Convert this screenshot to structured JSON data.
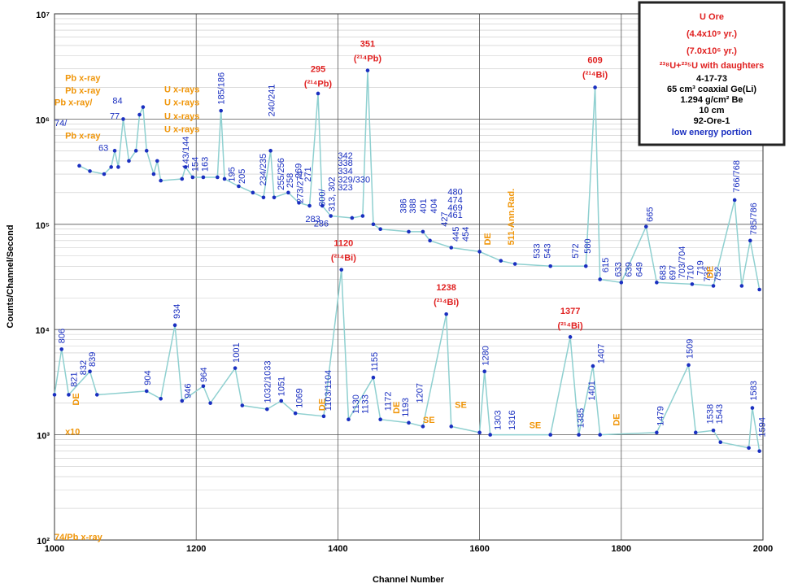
{
  "chart_data": {
    "type": "line",
    "ylabel": "Counts/Channel/Second",
    "xlabel": "Channel Number",
    "log_y": true,
    "grid": true,
    "xlim": [
      1000,
      2000
    ],
    "xticks": [
      1000,
      1200,
      1400,
      1600,
      1800,
      2000
    ],
    "ylim": [
      100,
      10000000
    ],
    "yticks": [
      {
        "value": 100,
        "label": "10²"
      },
      {
        "value": 1000,
        "label": "10³"
      },
      {
        "value": 10000,
        "label": "10⁴"
      },
      {
        "value": 100000,
        "label": "10⁵"
      },
      {
        "value": 1000000,
        "label": "10⁶"
      },
      {
        "value": 10000000,
        "label": "10⁷"
      }
    ],
    "line_color": "#8fd0d0",
    "marker_color": "#1a2fc0",
    "series": [
      {
        "x": [
          1035,
          1050,
          1070,
          1080,
          1085,
          1090,
          1097,
          1105,
          1115,
          1120,
          1125,
          1130,
          1140,
          1145,
          1150,
          1180,
          1185,
          1195,
          1210,
          1230,
          1235,
          1240,
          1260,
          1280,
          1295,
          1305,
          1310,
          1330,
          1345,
          1360,
          1372,
          1378,
          1390,
          1420,
          1435,
          1442,
          1450,
          1460,
          1500,
          1520,
          1530,
          1560,
          1600,
          1630,
          1650,
          1700,
          1750,
          1763,
          1770,
          1800,
          1835,
          1850,
          1900,
          1930,
          1960,
          1970,
          1982,
          1995
        ],
        "values": [
          360000,
          320000,
          300000,
          350000,
          500000,
          350000,
          1000000,
          400000,
          500000,
          1100000,
          1300000,
          500000,
          300000,
          400000,
          260000,
          270000,
          350000,
          280000,
          280000,
          280000,
          1200000,
          270000,
          230000,
          200000,
          180000,
          500000,
          180000,
          200000,
          160000,
          150000,
          1750000,
          150000,
          120000,
          115000,
          120000,
          2900000,
          100000,
          90000,
          85000,
          85000,
          70000,
          60000,
          55000,
          45000,
          42000,
          40000,
          40000,
          2000000,
          30000,
          28000,
          95000,
          28000,
          27000,
          26000,
          170000,
          26000,
          70000,
          24000
        ]
      },
      {
        "x": [
          1000,
          1010,
          1020,
          1050,
          1060,
          1130,
          1150,
          1170,
          1180,
          1210,
          1220,
          1255,
          1265,
          1300,
          1320,
          1340,
          1380,
          1405,
          1415,
          1450,
          1460,
          1500,
          1520,
          1553,
          1560,
          1600,
          1607,
          1615,
          1700,
          1728,
          1740,
          1760,
          1770,
          1850,
          1895,
          1905,
          1930,
          1940,
          1980,
          1985,
          1995
        ],
        "values": [
          2400,
          6500,
          2400,
          4000,
          2400,
          2600,
          2200,
          11000,
          2100,
          2900,
          2000,
          4300,
          1900,
          1750,
          2100,
          1600,
          1500,
          37000,
          1400,
          3500,
          1400,
          1300,
          1200,
          14000,
          1200,
          1050,
          4000,
          1000,
          1000,
          8500,
          1000,
          4500,
          1000,
          1050,
          4600,
          1050,
          1100,
          850,
          750,
          1800,
          700
        ]
      }
    ],
    "red_labels": {
      "color": "#e02020",
      "labels": [
        {
          "text": "295",
          "sub": "(²¹⁴Pb)",
          "x": 1372,
          "y": 1900000
        },
        {
          "text": "351",
          "sub": "(²¹⁴Pb)",
          "x": 1442,
          "y": 3300000
        },
        {
          "text": "609",
          "sub": "(²¹⁴Bi)",
          "x": 1763,
          "y": 2300000
        },
        {
          "text": "1120",
          "sub": "(²¹⁴Bi)",
          "x": 1408,
          "y": 42000
        },
        {
          "text": "1238",
          "sub": "(²¹⁴Bi)",
          "x": 1553,
          "y": 16000
        },
        {
          "text": "1377",
          "sub": "(²¹⁴Bi)",
          "x": 1728,
          "y": 9500
        }
      ]
    },
    "peak_labels": {
      "color": "#1a2fc0",
      "labels": [
        {
          "text": "143/144",
          "x": 1185,
          "y": 320000
        },
        {
          "text": "154",
          "x": 1198,
          "y": 300000
        },
        {
          "text": "163",
          "x": 1212,
          "y": 300000
        },
        {
          "text": "185/186",
          "x": 1235,
          "y": 1300000
        },
        {
          "text": "195",
          "x": 1250,
          "y": 240000
        },
        {
          "text": "205",
          "x": 1264,
          "y": 230000
        },
        {
          "text": "234/235",
          "x": 1294,
          "y": 220000
        },
        {
          "text": "240/241",
          "x": 1306,
          "y": 1000000
        },
        {
          "text": "255/256",
          "x": 1319,
          "y": 200000
        },
        {
          "text": "258",
          "x": 1332,
          "y": 210000
        },
        {
          "text": "269",
          "x": 1344,
          "y": 260000
        },
        {
          "text": "271",
          "x": 1357,
          "y": 240000
        },
        {
          "text": "273/274",
          "x": 1346,
          "y": 150000
        },
        {
          "text": "300/",
          "x": 1377,
          "y": 140000
        },
        {
          "text": "313, 302",
          "x": 1391,
          "y": 125000
        },
        {
          "text": "386",
          "x": 1492,
          "y": 120000
        },
        {
          "text": "388",
          "x": 1505,
          "y": 120000
        },
        {
          "text": "401",
          "x": 1520,
          "y": 120000
        },
        {
          "text": "404",
          "x": 1535,
          "y": 120000
        },
        {
          "text": "427",
          "x": 1550,
          "y": 90000
        },
        {
          "text": "445",
          "x": 1566,
          "y": 65000
        },
        {
          "text": "454",
          "x": 1580,
          "y": 65000
        },
        {
          "text": "533",
          "x": 1680,
          "y": 45000
        },
        {
          "text": "543",
          "x": 1695,
          "y": 45000
        },
        {
          "text": "572",
          "x": 1735,
          "y": 45000
        },
        {
          "text": "580",
          "x": 1752,
          "y": 50000
        },
        {
          "text": "615",
          "x": 1777,
          "y": 33000
        },
        {
          "text": "633",
          "x": 1795,
          "y": 30000
        },
        {
          "text": "639",
          "x": 1810,
          "y": 30000
        },
        {
          "text": "649",
          "x": 1825,
          "y": 30000
        },
        {
          "text": "665",
          "x": 1840,
          "y": 100000
        },
        {
          "text": "683",
          "x": 1858,
          "y": 28000
        },
        {
          "text": "697",
          "x": 1872,
          "y": 28000
        },
        {
          "text": "703/704",
          "x": 1885,
          "y": 29000
        },
        {
          "text": "710",
          "x": 1897,
          "y": 28000
        },
        {
          "text": "719",
          "x": 1911,
          "y": 31000
        },
        {
          "text": "733",
          "x": 1921,
          "y": 27000
        },
        {
          "text": "752",
          "x": 1936,
          "y": 27000
        },
        {
          "text": "766/768",
          "x": 1962,
          "y": 190000
        },
        {
          "text": "785/786",
          "x": 1986,
          "y": 75000
        },
        {
          "text": "806",
          "x": 1010,
          "y": 7000
        },
        {
          "text": "821",
          "x": 1027,
          "y": 2700
        },
        {
          "text": "832",
          "x": 1040,
          "y": 3500
        },
        {
          "text": "839",
          "x": 1053,
          "y": 4200
        },
        {
          "text": "904",
          "x": 1131,
          "y": 2800
        },
        {
          "text": "934",
          "x": 1172,
          "y": 12000
        },
        {
          "text": "946",
          "x": 1188,
          "y": 2100
        },
        {
          "text": "964",
          "x": 1210,
          "y": 3000
        },
        {
          "text": "1001",
          "x": 1256,
          "y": 4600
        },
        {
          "text": "1032/1033",
          "x": 1300,
          "y": 1900
        },
        {
          "text": "1051",
          "x": 1320,
          "y": 2200
        },
        {
          "text": "1069",
          "x": 1345,
          "y": 1700
        },
        {
          "text": "1103/1104",
          "x": 1386,
          "y": 1600
        },
        {
          "text": "1130",
          "x": 1425,
          "y": 1500
        },
        {
          "text": "1133",
          "x": 1438,
          "y": 1500
        },
        {
          "text": "1155",
          "x": 1451,
          "y": 3800
        },
        {
          "text": "1172",
          "x": 1470,
          "y": 1600
        },
        {
          "text": "1193",
          "x": 1495,
          "y": 1400
        },
        {
          "text": "1207",
          "x": 1515,
          "y": 1900
        },
        {
          "text": "1280",
          "x": 1608,
          "y": 4300
        },
        {
          "text": "1303",
          "x": 1625,
          "y": 1050
        },
        {
          "text": "1316",
          "x": 1645,
          "y": 1050
        },
        {
          "text": "1385",
          "x": 1742,
          "y": 1100
        },
        {
          "text": "1401",
          "x": 1758,
          "y": 2000
        },
        {
          "text": "1407",
          "x": 1771,
          "y": 4500
        },
        {
          "text": "1479",
          "x": 1855,
          "y": 1150
        },
        {
          "text": "1509",
          "x": 1896,
          "y": 5000
        },
        {
          "text": "1538",
          "x": 1925,
          "y": 1200
        },
        {
          "text": "1543",
          "x": 1938,
          "y": 1200
        },
        {
          "text": "1583",
          "x": 1986,
          "y": 2000
        },
        {
          "text": "1594",
          "x": 1998,
          "y": 900
        }
      ]
    },
    "peak_notes": {
      "color": "#1a2fc0",
      "labels": [
        {
          "text": "63",
          "x": 1062,
          "y": 500000
        },
        {
          "text": "77",
          "x": 1078,
          "y": 1000000
        },
        {
          "text": "84",
          "x": 1082,
          "y": 1400000
        },
        {
          "text": "74/",
          "x": 1000,
          "y": 860000
        },
        {
          "text": "342",
          "x": 1400,
          "y": 420000
        },
        {
          "text": "338",
          "x": 1400,
          "y": 360000
        },
        {
          "text": "334",
          "x": 1400,
          "y": 300000
        },
        {
          "text": "329/330",
          "x": 1400,
          "y": 250000
        },
        {
          "text": "323",
          "x": 1400,
          "y": 210000
        },
        {
          "text": "283",
          "x": 1354,
          "y": 105000
        },
        {
          "text": "286",
          "x": 1366,
          "y": 95000
        },
        {
          "text": "480",
          "x": 1555,
          "y": 190000
        },
        {
          "text": "474",
          "x": 1555,
          "y": 160000
        },
        {
          "text": "469",
          "x": 1555,
          "y": 135000
        },
        {
          "text": "461",
          "x": 1555,
          "y": 115000
        }
      ]
    },
    "orange_notes": {
      "color": "#f0960a",
      "labels": [
        {
          "text": "Pb x-ray",
          "x": 1015,
          "y": 2300000
        },
        {
          "text": "Pb x-ray",
          "x": 1015,
          "y": 1750000
        },
        {
          "text": "Pb x-ray/",
          "x": 1000,
          "y": 1350000
        },
        {
          "text": "Pb x-ray",
          "x": 1015,
          "y": 650000
        },
        {
          "text": "74/Pb x-ray",
          "x": 1000,
          "y": 100
        },
        {
          "text": "U x-rays",
          "x": 1155,
          "y": 1800000
        },
        {
          "text": "U x-rays",
          "x": 1155,
          "y": 1350000
        },
        {
          "text": "U x-rays",
          "x": 1155,
          "y": 1000000
        },
        {
          "text": "U x-rays",
          "x": 1155,
          "y": 750000
        },
        {
          "text": "x10",
          "x": 1015,
          "y": 1000
        },
        {
          "text": "SE",
          "x": 1520,
          "y": 1300
        },
        {
          "text": "SE",
          "x": 1565,
          "y": 1800
        },
        {
          "text": "SE",
          "x": 1670,
          "y": 1150
        }
      ]
    },
    "orange_vertical": {
      "color": "#f0960a",
      "labels": [
        {
          "text": "DE",
          "x": 1030,
          "y": 1800
        },
        {
          "text": "DE",
          "x": 1377,
          "y": 1600
        },
        {
          "text": "DE",
          "x": 1482,
          "y": 1500
        },
        {
          "text": "DE",
          "x": 1611,
          "y": 60000
        },
        {
          "text": "511-Ann.Rad.",
          "x": 1644,
          "y": 60000
        },
        {
          "text": "DE",
          "x": 1793,
          "y": 1150
        },
        {
          "text": "DE",
          "x": 1925,
          "y": 29000
        }
      ]
    },
    "box": {
      "title": "U Ore",
      "line1": "(4.4x10⁹ yr.)",
      "line2": "(7.0x10⁶ yr.)",
      "line3": "²³⁸U+²³⁵U with daughters",
      "info": [
        "4-17-73",
        "65 cm³ coaxial Ge(Li)",
        "1.294 g/cm² Be",
        "10 cm",
        "92-Ore-1"
      ],
      "footer": "low energy portion"
    }
  }
}
